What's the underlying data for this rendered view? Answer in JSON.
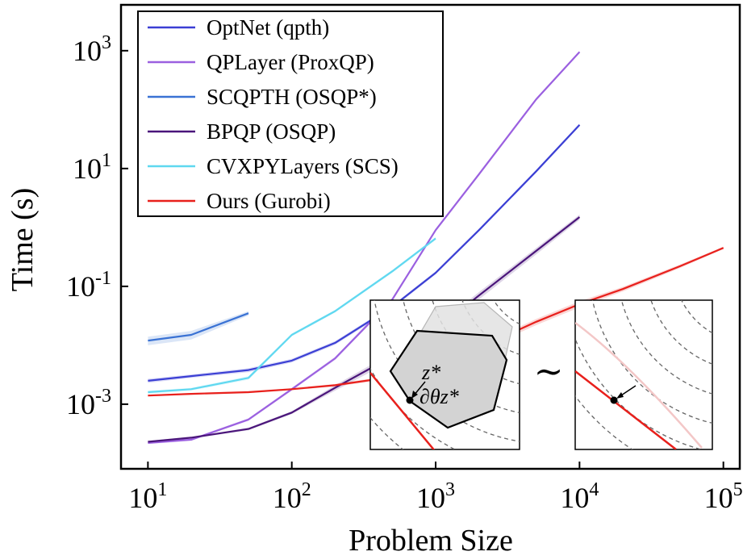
{
  "chart_data": {
    "type": "line",
    "title": "",
    "xlabel": "Problem Size",
    "ylabel": "Time (s)",
    "xscale": "log",
    "yscale": "log",
    "xlim": [
      6.5,
      130000
    ],
    "ylim": [
      8e-05,
      6000
    ],
    "x_ticks": [
      {
        "value": 10,
        "base": "10",
        "exp": "1"
      },
      {
        "value": 100,
        "base": "10",
        "exp": "2"
      },
      {
        "value": 1000,
        "base": "10",
        "exp": "3"
      },
      {
        "value": 10000,
        "base": "10",
        "exp": "4"
      },
      {
        "value": 100000,
        "base": "10",
        "exp": "5"
      }
    ],
    "y_ticks": [
      {
        "value": 0.001,
        "base": "10",
        "exp": "-3"
      },
      {
        "value": 0.1,
        "base": "10",
        "exp": "-1"
      },
      {
        "value": 10,
        "base": "10",
        "exp": "1"
      },
      {
        "value": 1000,
        "base": "10",
        "exp": "3"
      }
    ],
    "legend_position": "top-left",
    "series": [
      {
        "name": "OptNet (qpth)",
        "color": "#3b3fd4",
        "x": [
          10,
          20,
          50,
          100,
          200,
          500,
          1000,
          2000,
          5000,
          10000
        ],
        "y": [
          0.0025,
          0.003,
          0.0038,
          0.0055,
          0.011,
          0.045,
          0.17,
          0.9,
          9,
          55
        ],
        "band": [
          0.0002,
          0.0002,
          0.0003,
          0.0004,
          0.0008,
          0.003,
          0.01,
          0.05,
          0.5,
          3
        ]
      },
      {
        "name": "QPLayer (ProxQP)",
        "color": "#9b60e0",
        "x": [
          10,
          20,
          50,
          100,
          200,
          500,
          1000,
          2000,
          5000,
          10000
        ],
        "y": [
          0.00022,
          0.00025,
          0.00055,
          0.0018,
          0.006,
          0.06,
          0.9,
          8,
          150,
          950
        ],
        "band": [
          1e-05,
          1e-05,
          3e-05,
          0.0001,
          0.0004,
          0.004,
          0.05,
          0.5,
          8,
          40
        ]
      },
      {
        "name": "SCQPTH (OSQP*)",
        "color": "#3a72d4",
        "x": [
          10,
          20,
          50
        ],
        "y": [
          0.012,
          0.015,
          0.035
        ],
        "band": [
          0.002,
          0.0025,
          0.003
        ]
      },
      {
        "name": "BPQP (OSQP)",
        "color": "#4a157a",
        "x": [
          10,
          20,
          50,
          100,
          200,
          500,
          1000,
          2000,
          5000,
          10000
        ],
        "y": [
          0.00023,
          0.00027,
          0.00038,
          0.00072,
          0.0019,
          0.0065,
          0.018,
          0.07,
          0.4,
          1.5
        ],
        "band": [
          1e-05,
          1e-05,
          2e-05,
          4e-05,
          0.0002,
          0.001,
          0.003,
          0.01,
          0.05,
          0.15
        ]
      },
      {
        "name": "CVXPYLayers (SCS)",
        "color": "#5fd8f0",
        "x": [
          10,
          20,
          50,
          100,
          200,
          500,
          1000
        ],
        "y": [
          0.0016,
          0.0018,
          0.0028,
          0.015,
          0.038,
          0.18,
          0.65
        ],
        "band": [
          0.0001,
          0.0001,
          0.0002,
          0.0008,
          0.002,
          0.01,
          0.04
        ]
      },
      {
        "name": "Ours (Gurobi)",
        "color": "#e8201c",
        "x": [
          10,
          20,
          50,
          100,
          200,
          500,
          1000,
          2000,
          5000,
          10000,
          20000,
          50000,
          100000
        ],
        "y": [
          0.0014,
          0.0015,
          0.0016,
          0.0018,
          0.0021,
          0.0029,
          0.0045,
          0.009,
          0.025,
          0.05,
          0.09,
          0.22,
          0.45
        ],
        "band": [
          5e-05,
          5e-05,
          6e-05,
          7e-05,
          0.0001,
          0.0002,
          0.0004,
          0.001,
          0.003,
          0.006,
          0.008,
          0.015,
          0.02
        ]
      }
    ],
    "inset": {
      "left_label_point": "z*",
      "left_label_grad": "∂θz*",
      "similar_symbol": "∼"
    }
  }
}
